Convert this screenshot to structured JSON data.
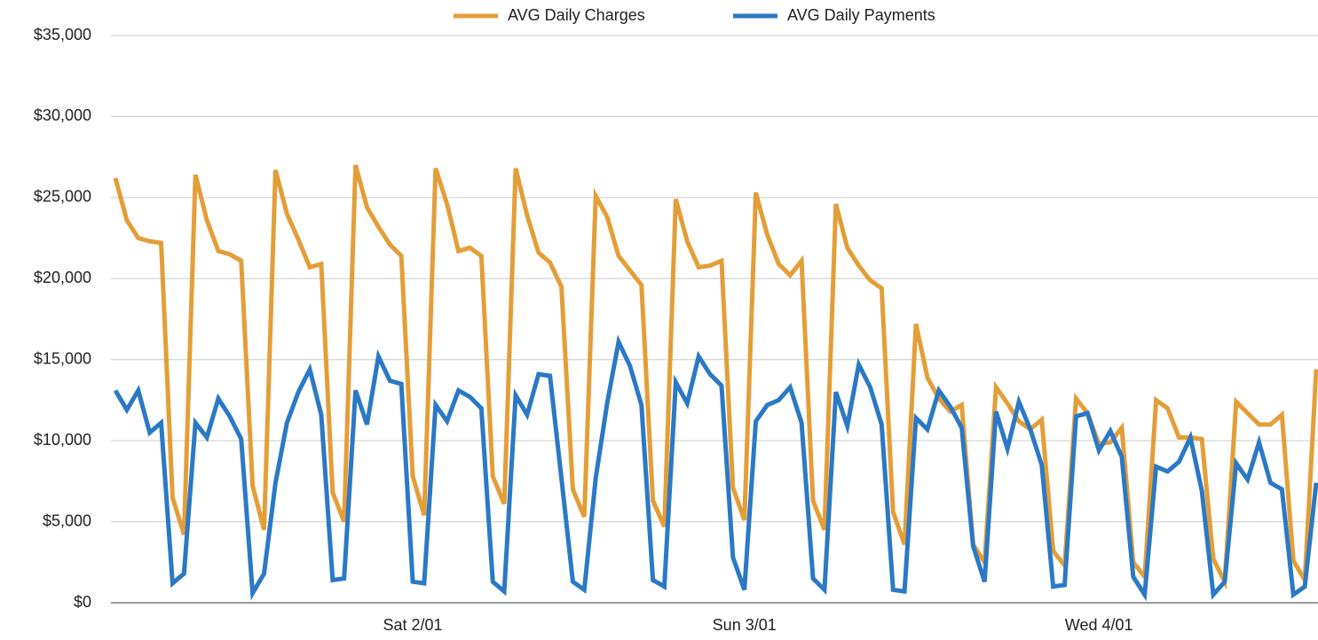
{
  "chart_data": {
    "type": "line",
    "categories": [
      null,
      null,
      null,
      null,
      null,
      null,
      null,
      null,
      null,
      null,
      null,
      null,
      null,
      null,
      null,
      null,
      null,
      null,
      null,
      null,
      null,
      null,
      null,
      null,
      null,
      null,
      "Sat 2/01",
      null,
      null,
      null,
      null,
      null,
      null,
      null,
      null,
      null,
      null,
      null,
      null,
      null,
      null,
      null,
      null,
      null,
      null,
      null,
      null,
      null,
      null,
      null,
      null,
      null,
      null,
      null,
      null,
      "Sun 3/01",
      null,
      null,
      null,
      null,
      null,
      null,
      null,
      null,
      null,
      null,
      null,
      null,
      null,
      null,
      null,
      null,
      null,
      null,
      null,
      null,
      null,
      null,
      null,
      null,
      null,
      null,
      null,
      null,
      null,
      null,
      "Wed 4/01",
      null,
      null,
      null,
      null,
      null,
      null,
      null,
      null,
      null,
      null,
      null,
      null,
      null,
      null,
      null,
      null,
      null,
      null,
      null
    ],
    "series": [
      {
        "name": "AVG Daily Charges",
        "color": "#e49e38",
        "values": [
          26200,
          23600,
          22500,
          22300,
          22200,
          6500,
          4200,
          26400,
          23600,
          21700,
          21500,
          21100,
          7200,
          4500,
          26700,
          24000,
          22400,
          20700,
          20900,
          6800,
          5000,
          27000,
          24400,
          23200,
          22100,
          21400,
          7800,
          5400,
          26800,
          24600,
          21700,
          21900,
          21400,
          7800,
          6100,
          26800,
          23900,
          21600,
          21000,
          19500,
          7000,
          5300,
          25100,
          23800,
          21400,
          20500,
          19600,
          6300,
          4700,
          24900,
          22300,
          20700,
          20800,
          21100,
          7100,
          5100,
          25300,
          22700,
          20900,
          20200,
          21100,
          6300,
          4500,
          24600,
          21900,
          20800,
          19900,
          19400,
          5600,
          3600,
          17200,
          13900,
          12600,
          11800,
          12200,
          3600,
          2500,
          13300,
          12300,
          11200,
          10700,
          11300,
          3200,
          2300,
          12600,
          11700,
          9800,
          9900,
          10800,
          2500,
          1600,
          12500,
          12000,
          10200,
          10200,
          10100,
          2700,
          1300,
          12400,
          11700,
          11000,
          11000,
          11600,
          2600,
          1400,
          14400
        ]
      },
      {
        "name": "AVG Daily Payments",
        "color": "#2b79c6",
        "values": [
          13100,
          11900,
          13100,
          10500,
          11100,
          1200,
          1800,
          11100,
          10200,
          12600,
          11500,
          10100,
          600,
          1800,
          7400,
          11100,
          13000,
          14400,
          11600,
          1400,
          1500,
          13100,
          11000,
          15200,
          13700,
          13500,
          1300,
          1200,
          12200,
          11200,
          13100,
          12700,
          12000,
          1300,
          700,
          12800,
          11600,
          14100,
          14000,
          7700,
          1300,
          800,
          7700,
          12300,
          16100,
          14600,
          12200,
          1400,
          1000,
          13600,
          12300,
          15200,
          14100,
          13400,
          2800,
          800,
          11200,
          12200,
          12500,
          13300,
          11100,
          1500,
          800,
          13000,
          10900,
          14700,
          13300,
          11000,
          800,
          700,
          11400,
          10700,
          13100,
          12100,
          10800,
          3500,
          1300,
          11800,
          9500,
          12400,
          10700,
          8500,
          1000,
          1100,
          11500,
          11700,
          9400,
          10600,
          9000,
          1600,
          500,
          8400,
          8100,
          8700,
          10200,
          6900,
          500,
          1300,
          8600,
          7600,
          9900,
          7400,
          7000,
          500,
          1000,
          7400
        ]
      }
    ],
    "ylim": [
      0,
      35000
    ],
    "yticks": [
      {
        "value": 0,
        "label": "$0"
      },
      {
        "value": 5000,
        "label": "$5,000"
      },
      {
        "value": 10000,
        "label": "$10,000"
      },
      {
        "value": 15000,
        "label": "$15,000"
      },
      {
        "value": 20000,
        "label": "$20,000"
      },
      {
        "value": 25000,
        "label": "$25,000"
      },
      {
        "value": 30000,
        "label": "$30,000"
      },
      {
        "value": 35000,
        "label": "$35,000"
      }
    ],
    "grid": true,
    "legend": "top"
  }
}
